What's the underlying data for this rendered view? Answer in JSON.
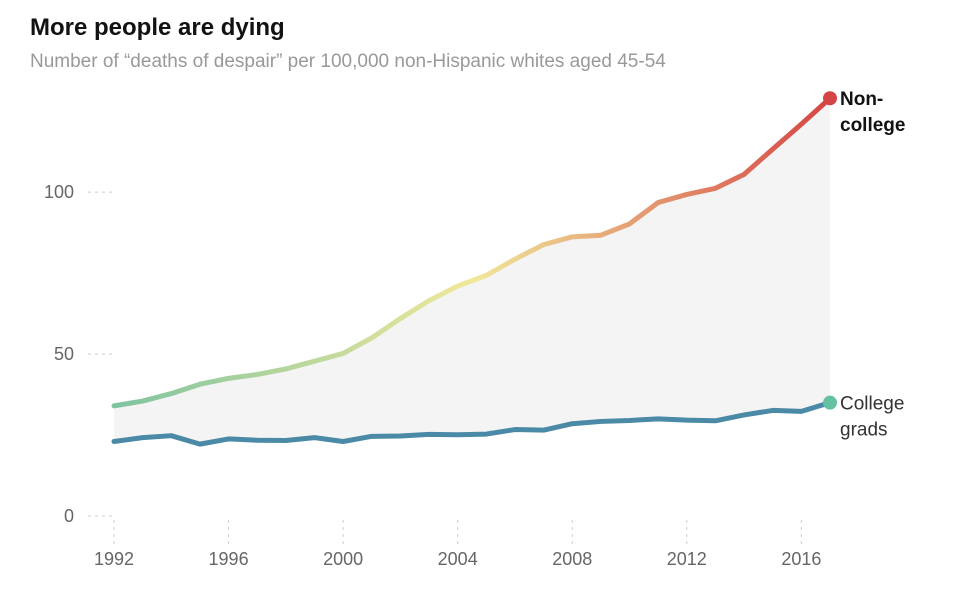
{
  "header": {
    "title": "More people are dying",
    "subtitle": "Number of “deaths of despair” per 100,000 non-Hispanic whites aged 45-54"
  },
  "chart_data": {
    "type": "line",
    "title": "More people are dying",
    "subtitle": "Number of “deaths of despair” per 100,000 non-Hispanic whites aged 45-54",
    "xlabel": "",
    "ylabel": "",
    "xlim": [
      1992,
      2017
    ],
    "ylim": [
      0,
      130
    ],
    "x_ticks": [
      "1992",
      "1996",
      "2000",
      "2004",
      "2008",
      "2012",
      "2016"
    ],
    "y_ticks": [
      "0",
      "50",
      "100"
    ],
    "grid": false,
    "legend": "none",
    "x": [
      1992,
      1993,
      1994,
      1995,
      1996,
      1997,
      1998,
      1999,
      2000,
      2001,
      2002,
      2003,
      2004,
      2005,
      2006,
      2007,
      2008,
      2009,
      2010,
      2011,
      2012,
      2013,
      2014,
      2015,
      2016,
      2017
    ],
    "series": [
      {
        "name": "Non-college",
        "label_lines": [
          "Non-",
          "college"
        ],
        "color_start": "#7fc4a0",
        "color_mid": "#f0e89a",
        "color_end": "#d64545",
        "values": [
          34,
          35.5,
          37.8,
          40.7,
          42.5,
          43.7,
          45.4,
          47.8,
          50.2,
          55,
          61,
          66.5,
          71,
          74.3,
          79.3,
          83.8,
          86.2,
          86.7,
          90.2,
          96.8,
          99.3,
          101.2,
          105.5,
          113.3,
          121,
          129
        ]
      },
      {
        "name": "College grads",
        "label_lines": [
          "College",
          "grads"
        ],
        "color": "#4a8aa6",
        "end_marker_color": "#66c1a2",
        "values": [
          23,
          24.2,
          24.8,
          22.2,
          23.8,
          23.4,
          23.3,
          24.2,
          23,
          24.6,
          24.7,
          25.2,
          25.1,
          25.3,
          26.7,
          26.5,
          28.5,
          29.2,
          29.5,
          30,
          29.6,
          29.4,
          31.2,
          32.6,
          32.3,
          35
        ]
      }
    ],
    "fill_between": true,
    "fill_color": "#f4f4f4"
  }
}
